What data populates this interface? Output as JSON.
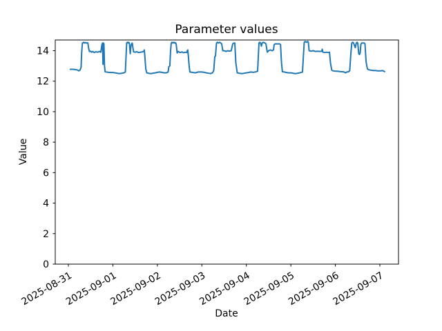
{
  "chart": {
    "title": "Parameter values",
    "xlabel": "Date",
    "ylabel": "Value"
  },
  "chart_data": {
    "type": "line",
    "title": "Parameter values",
    "xlabel": "Date",
    "ylabel": "Value",
    "grid": false,
    "legend_position": "none",
    "line_color": "#1f77b4",
    "background_color": "#ffffff",
    "spine_color": "#000000",
    "x_tick_labels": [
      "2025-08-31",
      "2025-09-01",
      "2025-09-02",
      "2025-09-03",
      "2025-09-04",
      "2025-09-05",
      "2025-09-06",
      "2025-09-07"
    ],
    "x_tick_label_rotation_deg": -30,
    "y_ticks": [
      0,
      2,
      4,
      6,
      8,
      10,
      12,
      14
    ],
    "ylim": [
      0,
      14.7
    ],
    "xlim_days_from_first_tick": [
      -0.3,
      7.42
    ],
    "series": [
      {
        "name": "Parameter values",
        "x_unit": "days since 2025-08-31 00:00",
        "points": [
          [
            0.042,
            12.78
          ],
          [
            0.1,
            12.78
          ],
          [
            0.15,
            12.76
          ],
          [
            0.2,
            12.74
          ],
          [
            0.235,
            12.68
          ],
          [
            0.26,
            12.72
          ],
          [
            0.285,
            12.9
          ],
          [
            0.3,
            13.9
          ],
          [
            0.315,
            14.5
          ],
          [
            0.33,
            14.52
          ],
          [
            0.345,
            14.55
          ],
          [
            0.36,
            14.5
          ],
          [
            0.38,
            14.53
          ],
          [
            0.4,
            14.5
          ],
          [
            0.425,
            14.52
          ],
          [
            0.44,
            14.5
          ],
          [
            0.455,
            14.15
          ],
          [
            0.473,
            13.95
          ],
          [
            0.5,
            13.97
          ],
          [
            0.52,
            13.9
          ],
          [
            0.55,
            13.95
          ],
          [
            0.58,
            13.88
          ],
          [
            0.62,
            13.93
          ],
          [
            0.66,
            13.9
          ],
          [
            0.7,
            13.95
          ],
          [
            0.73,
            13.9
          ],
          [
            0.755,
            14.4
          ],
          [
            0.768,
            14.5
          ],
          [
            0.778,
            13.1
          ],
          [
            0.79,
            14.5
          ],
          [
            0.8,
            14.45
          ],
          [
            0.812,
            13.0
          ],
          [
            0.825,
            12.62
          ],
          [
            0.85,
            12.6
          ],
          [
            0.9,
            12.58
          ],
          [
            0.95,
            12.57
          ],
          [
            1.0,
            12.57
          ],
          [
            1.05,
            12.55
          ],
          [
            1.1,
            12.52
          ],
          [
            1.15,
            12.5
          ],
          [
            1.2,
            12.52
          ],
          [
            1.25,
            12.55
          ],
          [
            1.28,
            12.6
          ],
          [
            1.295,
            13.5
          ],
          [
            1.31,
            14.5
          ],
          [
            1.325,
            14.55
          ],
          [
            1.34,
            14.5
          ],
          [
            1.355,
            14.55
          ],
          [
            1.37,
            14.5
          ],
          [
            1.39,
            13.8
          ],
          [
            1.405,
            14.3
          ],
          [
            1.42,
            14.45
          ],
          [
            1.436,
            14.5
          ],
          [
            1.45,
            14.2
          ],
          [
            1.467,
            13.92
          ],
          [
            1.5,
            13.9
          ],
          [
            1.54,
            13.93
          ],
          [
            1.58,
            13.88
          ],
          [
            1.62,
            13.9
          ],
          [
            1.66,
            13.92
          ],
          [
            1.69,
            13.95
          ],
          [
            1.705,
            14.05
          ],
          [
            1.72,
            13.6
          ],
          [
            1.74,
            12.8
          ],
          [
            1.762,
            12.55
          ],
          [
            1.8,
            12.52
          ],
          [
            1.85,
            12.5
          ],
          [
            1.9,
            12.52
          ],
          [
            1.95,
            12.55
          ],
          [
            2.0,
            12.58
          ],
          [
            2.05,
            12.6
          ],
          [
            2.1,
            12.58
          ],
          [
            2.15,
            12.55
          ],
          [
            2.2,
            12.55
          ],
          [
            2.242,
            12.6
          ],
          [
            2.258,
            12.95
          ],
          [
            2.28,
            13.0
          ],
          [
            2.297,
            14.0
          ],
          [
            2.312,
            14.5
          ],
          [
            2.33,
            14.55
          ],
          [
            2.35,
            14.5
          ],
          [
            2.37,
            14.55
          ],
          [
            2.39,
            14.5
          ],
          [
            2.41,
            14.52
          ],
          [
            2.425,
            14.4
          ],
          [
            2.444,
            13.85
          ],
          [
            2.47,
            13.95
          ],
          [
            2.51,
            13.88
          ],
          [
            2.55,
            13.92
          ],
          [
            2.59,
            13.87
          ],
          [
            2.63,
            13.9
          ],
          [
            2.66,
            13.88
          ],
          [
            2.672,
            14.0
          ],
          [
            2.684,
            14.05
          ],
          [
            2.7,
            13.5
          ],
          [
            2.715,
            13.0
          ],
          [
            2.73,
            12.6
          ],
          [
            2.78,
            12.58
          ],
          [
            2.85,
            12.55
          ],
          [
            2.92,
            12.6
          ],
          [
            3.0,
            12.6
          ],
          [
            3.05,
            12.58
          ],
          [
            3.1,
            12.55
          ],
          [
            3.15,
            12.52
          ],
          [
            3.197,
            12.5
          ],
          [
            3.24,
            12.55
          ],
          [
            3.267,
            12.7
          ],
          [
            3.29,
            13.6
          ],
          [
            3.306,
            13.65
          ],
          [
            3.33,
            14.5
          ],
          [
            3.35,
            14.55
          ],
          [
            3.37,
            14.5
          ],
          [
            3.4,
            14.55
          ],
          [
            3.425,
            14.5
          ],
          [
            3.445,
            14.45
          ],
          [
            3.47,
            14.0
          ],
          [
            3.5,
            14.0
          ],
          [
            3.54,
            13.95
          ],
          [
            3.58,
            14.0
          ],
          [
            3.62,
            13.97
          ],
          [
            3.66,
            14.0
          ],
          [
            3.694,
            14.45
          ],
          [
            3.72,
            14.5
          ],
          [
            3.74,
            14.5
          ],
          [
            3.764,
            13.2
          ],
          [
            3.795,
            12.55
          ],
          [
            3.84,
            12.52
          ],
          [
            3.9,
            12.5
          ],
          [
            3.95,
            12.52
          ],
          [
            4.0,
            12.55
          ],
          [
            4.05,
            12.57
          ],
          [
            4.1,
            12.6
          ],
          [
            4.15,
            12.58
          ],
          [
            4.2,
            12.6
          ],
          [
            4.253,
            12.65
          ],
          [
            4.268,
            13.6
          ],
          [
            4.284,
            14.5
          ],
          [
            4.3,
            14.55
          ],
          [
            4.32,
            14.5
          ],
          [
            4.338,
            14.3
          ],
          [
            4.355,
            14.5
          ],
          [
            4.38,
            14.55
          ],
          [
            4.42,
            14.5
          ],
          [
            4.44,
            14.45
          ],
          [
            4.47,
            13.9
          ],
          [
            4.5,
            14.0
          ],
          [
            4.54,
            14.05
          ],
          [
            4.58,
            14.0
          ],
          [
            4.61,
            14.05
          ],
          [
            4.625,
            14.4
          ],
          [
            4.65,
            14.45
          ],
          [
            4.7,
            14.45
          ],
          [
            4.75,
            14.45
          ],
          [
            4.768,
            14.4
          ],
          [
            4.79,
            13.2
          ],
          [
            4.81,
            12.62
          ],
          [
            4.85,
            12.6
          ],
          [
            4.9,
            12.57
          ],
          [
            4.95,
            12.55
          ],
          [
            5.0,
            12.55
          ],
          [
            5.05,
            12.52
          ],
          [
            5.1,
            12.5
          ],
          [
            5.15,
            12.52
          ],
          [
            5.2,
            12.55
          ],
          [
            5.262,
            12.6
          ],
          [
            5.278,
            13.5
          ],
          [
            5.3,
            14.55
          ],
          [
            5.32,
            14.6
          ],
          [
            5.35,
            14.55
          ],
          [
            5.38,
            14.6
          ],
          [
            5.394,
            14.55
          ],
          [
            5.41,
            14.0
          ],
          [
            5.45,
            13.97
          ],
          [
            5.5,
            14.0
          ],
          [
            5.55,
            13.95
          ],
          [
            5.6,
            13.97
          ],
          [
            5.65,
            13.95
          ],
          [
            5.697,
            13.97
          ],
          [
            5.705,
            14.1
          ],
          [
            5.72,
            13.9
          ],
          [
            5.76,
            13.88
          ],
          [
            5.8,
            13.9
          ],
          [
            5.84,
            13.88
          ],
          [
            5.868,
            13.9
          ],
          [
            5.89,
            13.2
          ],
          [
            5.92,
            12.72
          ],
          [
            5.95,
            12.68
          ],
          [
            6.0,
            12.65
          ],
          [
            6.05,
            12.65
          ],
          [
            6.1,
            12.63
          ],
          [
            6.15,
            12.62
          ],
          [
            6.2,
            12.6
          ],
          [
            6.225,
            12.55
          ],
          [
            6.26,
            12.6
          ],
          [
            6.3,
            12.62
          ],
          [
            6.324,
            12.7
          ],
          [
            6.348,
            13.8
          ],
          [
            6.37,
            14.5
          ],
          [
            6.39,
            14.55
          ],
          [
            6.41,
            14.5
          ],
          [
            6.448,
            14.2
          ],
          [
            6.47,
            14.5
          ],
          [
            6.49,
            14.55
          ],
          [
            6.503,
            14.5
          ],
          [
            6.526,
            13.8
          ],
          [
            6.54,
            13.75
          ],
          [
            6.558,
            13.85
          ],
          [
            6.573,
            14.4
          ],
          [
            6.59,
            14.5
          ],
          [
            6.62,
            14.5
          ],
          [
            6.65,
            14.5
          ],
          [
            6.666,
            14.45
          ],
          [
            6.69,
            13.3
          ],
          [
            6.72,
            12.8
          ],
          [
            6.75,
            12.75
          ],
          [
            6.8,
            12.72
          ],
          [
            6.85,
            12.7
          ],
          [
            6.9,
            12.7
          ],
          [
            6.95,
            12.68
          ],
          [
            7.0,
            12.68
          ],
          [
            7.03,
            12.68
          ],
          [
            7.06,
            12.7
          ],
          [
            7.09,
            12.65
          ],
          [
            7.109,
            12.63
          ]
        ]
      }
    ]
  }
}
